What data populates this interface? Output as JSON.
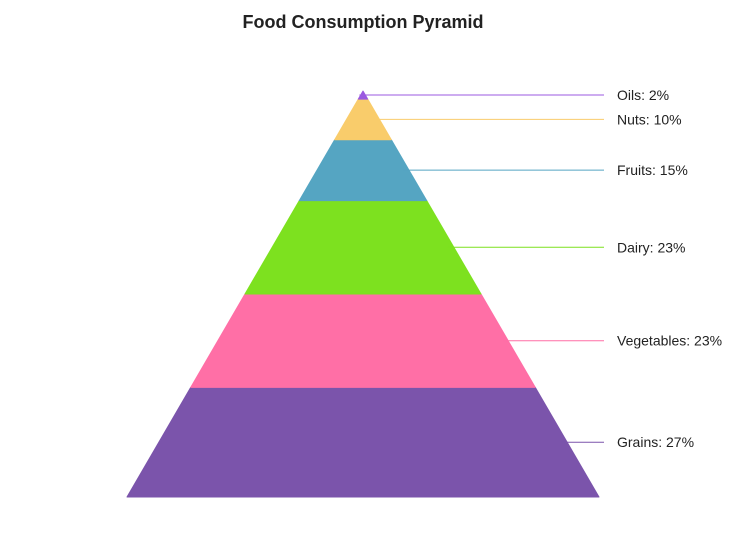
{
  "chart_data": {
    "type": "pyramid",
    "title": "Food Consumption Pyramid",
    "categories": [
      "Grains",
      "Vegetables",
      "Dairy",
      "Fruits",
      "Nuts",
      "Oils"
    ],
    "values": [
      27,
      23,
      23,
      15,
      10,
      2
    ],
    "unit": "%",
    "labels": [
      "Grains: 27%",
      "Vegetables: 23%",
      "Dairy: 23%",
      "Fruits: 15%",
      "Nuts: 10%",
      "Oils: 2%"
    ],
    "colors": [
      "#7b54ab",
      "#ff6fa6",
      "#7de11f",
      "#55a5c2",
      "#f9cc6b",
      "#9b59e0"
    ],
    "legend_placement": "right",
    "grid": false
  }
}
